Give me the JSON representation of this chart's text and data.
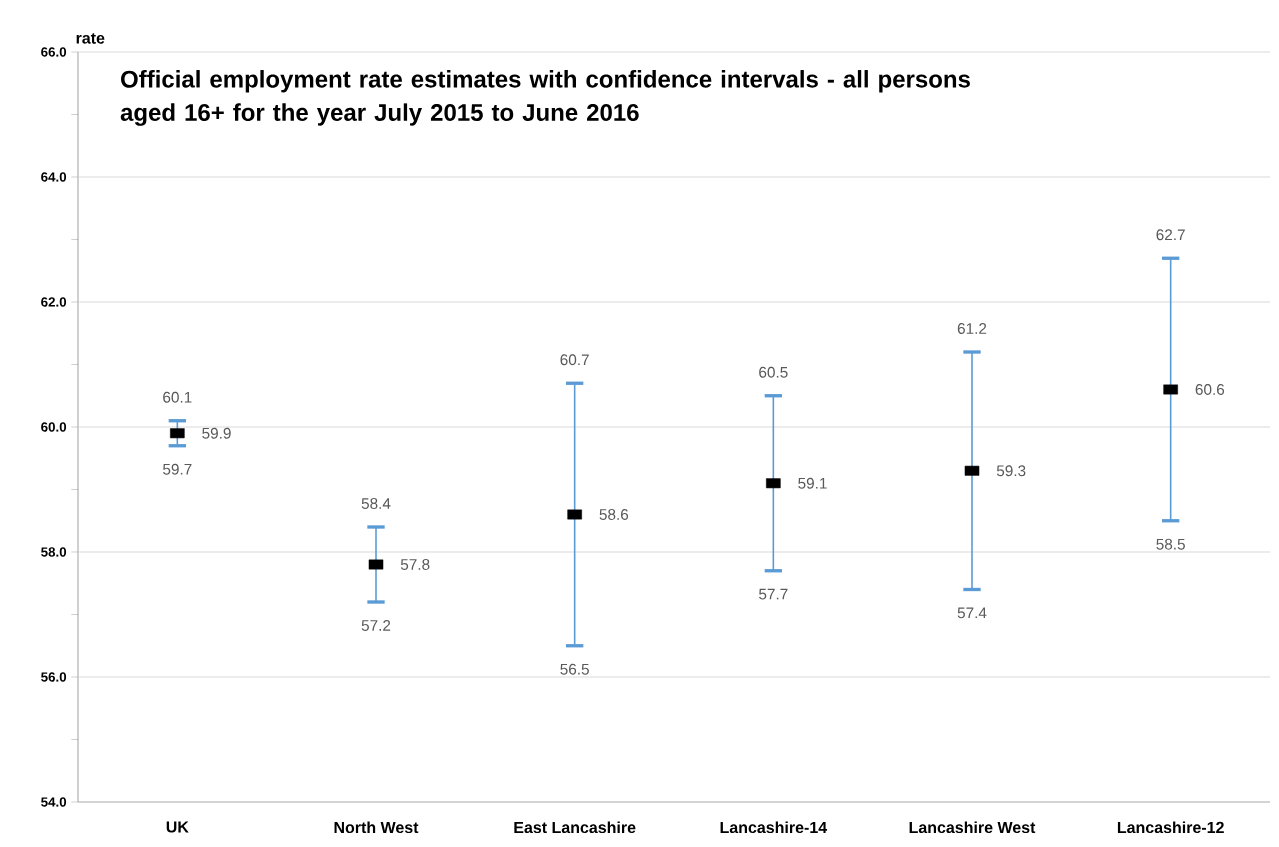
{
  "chart_data": {
    "type": "scatter",
    "title": "Official employment rate estimates with confidence intervals - all persons aged 16+ for the year July 2015 to June 2016",
    "ylabel": "rate",
    "categories": [
      "UK",
      "North West",
      "East Lancashire",
      "Lancashire-14",
      "Lancashire West",
      "Lancashire-12"
    ],
    "series": [
      {
        "color": "#000000",
        "values": [
          59.9,
          57.8,
          58.6,
          59.1,
          59.3,
          60.6
        ],
        "errors": [
          [
            59.7,
            60.1
          ],
          [
            57.2,
            58.4
          ],
          [
            56.5,
            60.7
          ],
          [
            57.7,
            60.5
          ],
          [
            57.4,
            61.2
          ],
          [
            58.5,
            62.7
          ]
        ]
      }
    ],
    "data_labels": true,
    "marker": "square",
    "annotations": [
      {
        "text": "60.1",
        "x": "UK",
        "y": 60.1
      },
      {
        "text": "59.7",
        "x": "UK",
        "y": 59.7
      },
      {
        "text": "58.4",
        "x": "North West",
        "y": 58.4
      },
      {
        "text": "57.2",
        "x": "North West",
        "y": 57.2
      },
      {
        "text": "60.7",
        "x": "East Lancashire",
        "y": 60.7
      },
      {
        "text": "56.5",
        "x": "East Lancashire",
        "y": 56.5
      },
      {
        "text": "60.5",
        "x": "Lancashire-14",
        "y": 60.5
      },
      {
        "text": "57.7",
        "x": "Lancashire-14",
        "y": 57.7
      },
      {
        "text": "61.2",
        "x": "Lancashire West",
        "y": 61.2
      },
      {
        "text": "57.4",
        "x": "Lancashire West",
        "y": 57.4
      },
      {
        "text": "62.7",
        "x": "Lancashire-12",
        "y": 62.7
      },
      {
        "text": "58.5",
        "x": "Lancashire-12",
        "y": 58.5
      }
    ],
    "ylim": [
      54,
      66
    ],
    "yticks": [
      {
        "value": 54,
        "label": "54.0"
      },
      {
        "value": 55,
        "label": null
      },
      {
        "value": 56,
        "label": "56.0"
      },
      {
        "value": 57,
        "label": null
      },
      {
        "value": 58,
        "label": "58.0"
      },
      {
        "value": 59,
        "label": null
      },
      {
        "value": 60,
        "label": "60.0"
      },
      {
        "value": 61,
        "label": null
      },
      {
        "value": 62,
        "label": "62.0"
      },
      {
        "value": 63,
        "label": null
      },
      {
        "value": 64,
        "label": "64.0"
      },
      {
        "value": 65,
        "label": null
      },
      {
        "value": 66,
        "label": "66.0"
      }
    ],
    "grid": "y"
  }
}
